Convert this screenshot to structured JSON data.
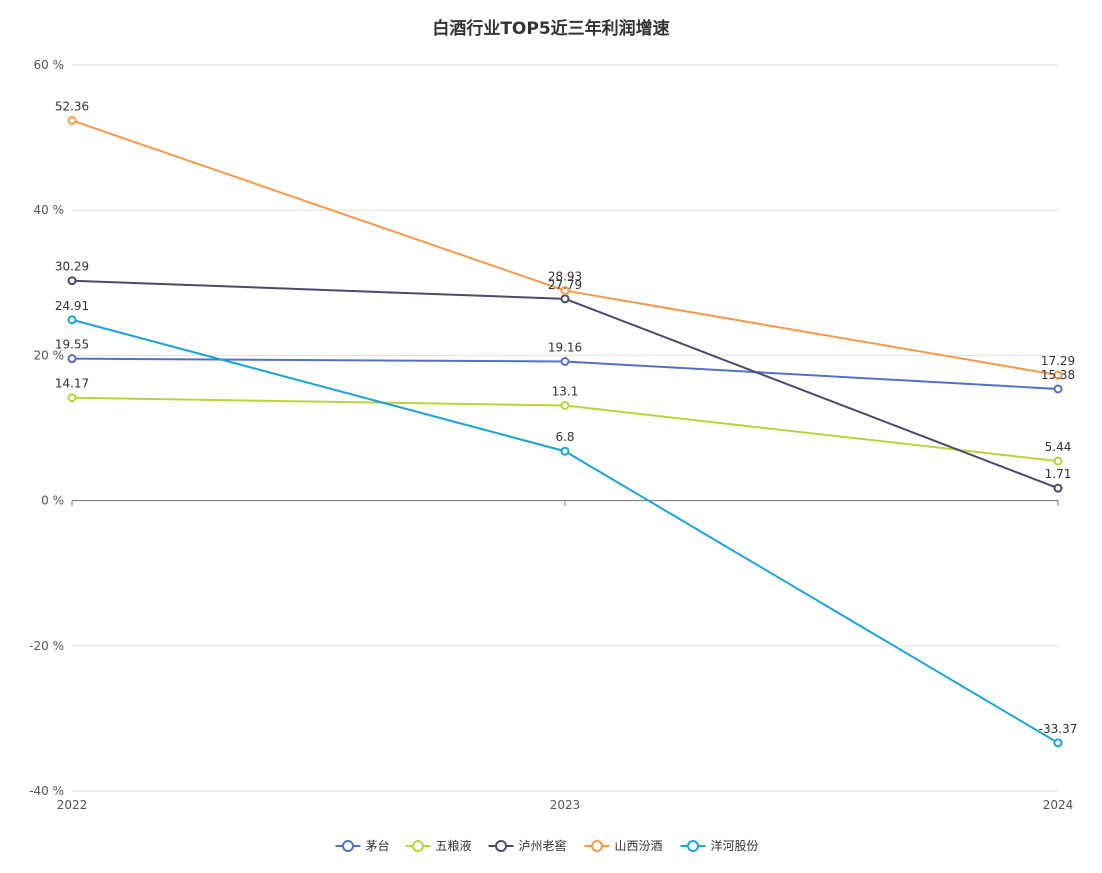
{
  "chart_data": {
    "type": "line",
    "title": "白酒行业TOP5近三年利润增速",
    "xlabel": "",
    "ylabel": "",
    "x": [
      "2022",
      "2023",
      "2024"
    ],
    "ylim": [
      -40,
      60
    ],
    "y_ticks": [
      -40,
      -20,
      0,
      20,
      40,
      60
    ],
    "y_tick_suffix": " %",
    "grid": true,
    "legend_position": "bottom-center",
    "series": [
      {
        "name": "茅台",
        "color": "#5470c6",
        "values": [
          19.55,
          19.16,
          15.38
        ]
      },
      {
        "name": "五粮液",
        "color": "#b5d53a",
        "values": [
          14.17,
          13.1,
          5.44
        ]
      },
      {
        "name": "泸州老窖",
        "color": "#4a4a6a",
        "values": [
          30.29,
          27.79,
          1.71
        ]
      },
      {
        "name": "山西汾酒",
        "color": "#f5994a",
        "values": [
          52.36,
          28.93,
          17.29
        ]
      },
      {
        "name": "洋河股份",
        "color": "#1aa3d4",
        "values": [
          24.91,
          6.8,
          -33.37
        ]
      }
    ]
  }
}
